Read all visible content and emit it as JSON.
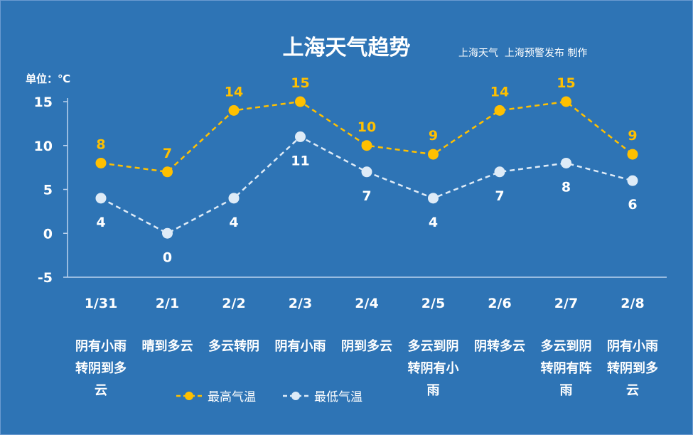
{
  "chart_data": {
    "type": "line",
    "title": "上海天气趋势",
    "credit": "上海天气  上海预警发布 制作",
    "unit_label": "单位：℃",
    "categories": [
      "1/31",
      "2/1",
      "2/2",
      "2/3",
      "2/4",
      "2/5",
      "2/6",
      "2/7",
      "2/8"
    ],
    "weather": [
      "阴有小雨\n转阴到多\n云",
      "晴到多云",
      "多云转阴",
      "阴有小雨",
      "阴到多云",
      "多云到阴\n转阴有小\n雨",
      "阴转多云",
      "多云到阴\n转阴有阵\n雨",
      "阴有小雨\n转阴到多\n云"
    ],
    "series": [
      {
        "name": "最高气温",
        "values": [
          8,
          7,
          14,
          15,
          10,
          9,
          14,
          15,
          9
        ],
        "color": "#ffc000",
        "label_position": "above"
      },
      {
        "name": "最低气温",
        "values": [
          4,
          0,
          4,
          11,
          7,
          4,
          7,
          8,
          6
        ],
        "color": "#deebf7",
        "label_position": "below"
      }
    ],
    "ylim": [
      -5,
      15
    ],
    "yticks": [
      15,
      10,
      5,
      0,
      -5
    ],
    "line_style": "dashed",
    "grid": false,
    "legend_position": "bottom"
  }
}
